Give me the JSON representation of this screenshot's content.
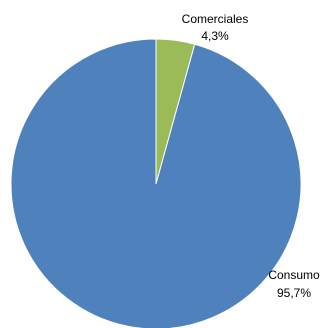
{
  "chart_data": {
    "type": "pie",
    "title": "",
    "slices": [
      {
        "label": "Comerciales",
        "value": 4.3,
        "value_label": "4,3%",
        "color": "#9BBB59"
      },
      {
        "label": "Consumo",
        "value": 95.7,
        "value_label": "95,7%",
        "color": "#4F81BD"
      }
    ],
    "start_angle_deg": 0,
    "direction": "clockwise",
    "legend": "none",
    "slice_border_color": "#ffffff"
  }
}
